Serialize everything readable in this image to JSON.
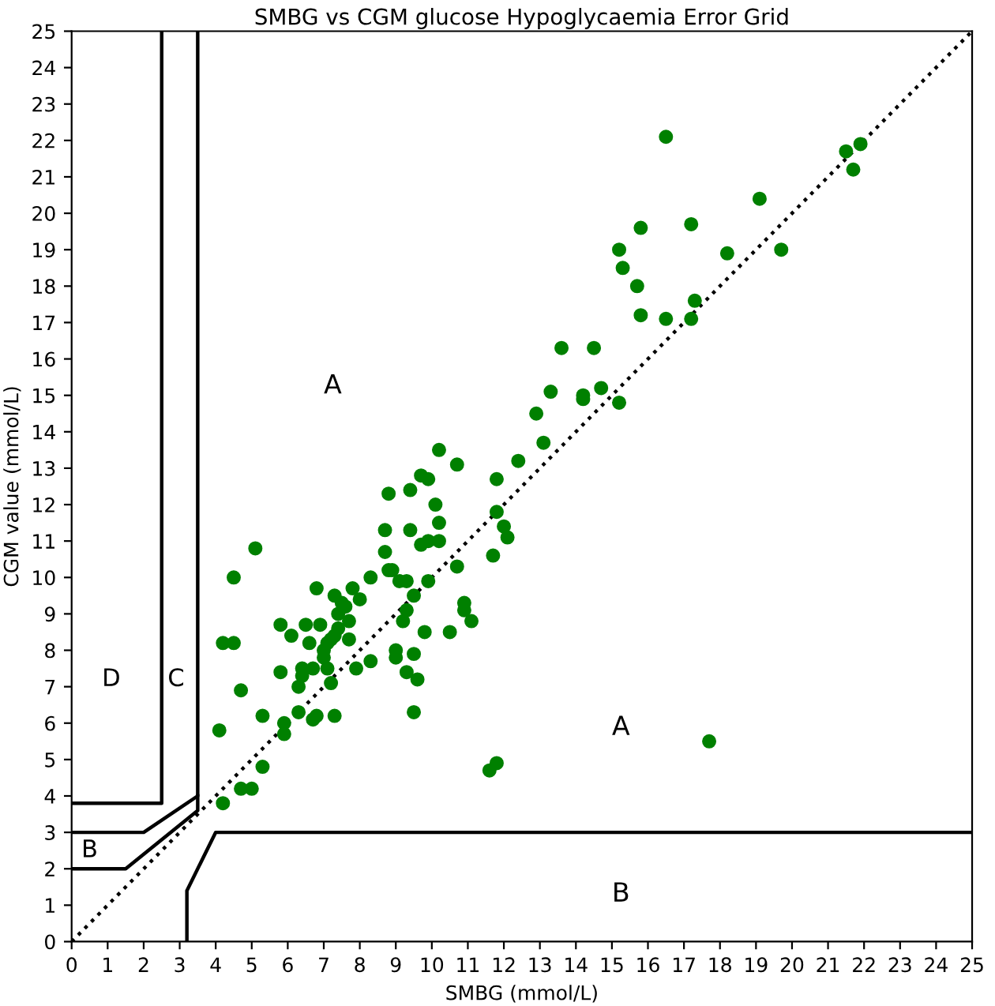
{
  "chart_data": {
    "type": "scatter",
    "title": "SMBG vs CGM glucose Hypoglycaemia Error Grid",
    "xlabel": "SMBG (mmol/L)",
    "ylabel": "CGM value (mmol/L)",
    "xlim": [
      0,
      25
    ],
    "ylim": [
      0,
      25
    ],
    "xticks": [
      0,
      1,
      2,
      3,
      4,
      5,
      6,
      7,
      8,
      9,
      10,
      11,
      12,
      13,
      14,
      15,
      16,
      17,
      18,
      19,
      20,
      21,
      22,
      23,
      24,
      25
    ],
    "yticks": [
      0,
      1,
      2,
      3,
      4,
      5,
      6,
      7,
      8,
      9,
      10,
      11,
      12,
      13,
      14,
      15,
      16,
      17,
      18,
      19,
      20,
      21,
      22,
      23,
      24,
      25
    ],
    "grid": false,
    "series": [
      {
        "color": "#008000",
        "marker": "circle",
        "x": [
          4.2,
          4.7,
          5.0,
          5.3,
          4.1,
          5.3,
          4.7,
          4.2,
          4.5,
          4.5,
          5.1,
          5.9,
          5.9,
          6.3,
          6.7,
          6.8,
          7.3,
          5.8,
          6.3,
          6.4,
          6.4,
          6.7,
          7.1,
          7.2,
          7.9,
          8.3,
          9.0,
          9.0,
          9.3,
          9.5,
          9.6,
          9.5,
          6.6,
          6.1,
          5.8,
          6.5,
          6.9,
          7.0,
          7.1,
          7.2,
          7.3,
          7.4,
          7.7,
          7.0,
          6.8,
          7.3,
          7.5,
          7.4,
          7.6,
          7.7,
          8.0,
          7.8,
          8.3,
          9.8,
          10.5,
          8.7,
          8.8,
          8.9,
          9.1,
          9.3,
          9.5,
          9.9,
          9.3,
          9.2,
          10.9,
          10.9,
          11.1,
          8.7,
          9.4,
          9.7,
          9.9,
          10.2,
          10.2,
          10.1,
          8.8,
          9.4,
          9.7,
          9.9,
          10.2,
          10.7,
          11.8,
          11.8,
          11.7,
          10.7,
          12.0,
          12.1,
          12.4,
          12.9,
          13.1,
          13.3,
          13.6,
          14.5,
          14.2,
          14.2,
          14.7,
          15.2,
          15.2,
          15.3,
          15.7,
          15.8,
          15.8,
          16.5,
          16.5,
          17.2,
          17.3,
          17.2,
          18.2,
          19.1,
          19.7,
          21.5,
          21.7,
          21.9,
          11.6,
          11.8,
          17.7
        ],
        "values": [
          3.8,
          4.2,
          4.2,
          4.8,
          5.8,
          6.2,
          6.9,
          8.2,
          8.2,
          10.0,
          10.8,
          5.7,
          6.0,
          6.3,
          6.1,
          6.2,
          6.2,
          7.4,
          7.0,
          7.3,
          7.5,
          7.5,
          7.5,
          7.1,
          7.5,
          7.7,
          8.0,
          7.8,
          7.4,
          7.9,
          7.2,
          6.3,
          8.2,
          8.4,
          8.7,
          8.7,
          8.7,
          8.0,
          8.2,
          8.3,
          8.4,
          8.6,
          8.3,
          7.8,
          9.7,
          9.5,
          9.3,
          9.0,
          9.2,
          8.8,
          9.4,
          9.7,
          10.0,
          8.5,
          8.5,
          10.7,
          10.2,
          10.2,
          9.9,
          9.9,
          9.5,
          9.9,
          9.1,
          8.8,
          9.3,
          9.1,
          8.8,
          11.3,
          11.3,
          10.9,
          11.0,
          11.0,
          11.5,
          12.0,
          12.3,
          12.4,
          12.8,
          12.7,
          13.5,
          13.1,
          12.7,
          11.8,
          10.6,
          10.3,
          11.4,
          11.1,
          13.2,
          14.5,
          13.7,
          15.1,
          16.3,
          16.3,
          15.0,
          14.9,
          15.2,
          14.8,
          19.0,
          18.5,
          18.0,
          17.2,
          19.6,
          22.1,
          17.1,
          17.1,
          17.6,
          19.7,
          18.9,
          20.4,
          19.0,
          21.7,
          21.2,
          21.9,
          4.7,
          4.9,
          5.5
        ]
      },
      {
        "type": "line",
        "color": "#000000",
        "line_style": "dotted",
        "x": [
          0,
          25
        ],
        "values": [
          0,
          25
        ]
      },
      {
        "type": "line",
        "color": "#000000",
        "line_style": "solid",
        "x": [
          0,
          2.5,
          2.5
        ],
        "values": [
          3.8,
          3.8,
          25
        ]
      },
      {
        "type": "line",
        "color": "#000000",
        "line_style": "solid",
        "x": [
          0,
          2,
          3.5,
          3.5
        ],
        "values": [
          3,
          3,
          4,
          25
        ]
      },
      {
        "type": "line",
        "color": "#000000",
        "line_style": "solid",
        "x": [
          0,
          1.5,
          3.5,
          3.5
        ],
        "values": [
          2,
          2,
          3.6,
          4
        ]
      },
      {
        "type": "line",
        "color": "#000000",
        "line_style": "solid",
        "x": [
          3.2,
          3.2,
          4,
          25
        ],
        "values": [
          0,
          1.4,
          3,
          3
        ]
      }
    ],
    "annotations": [
      "A",
      "A",
      "B",
      "B",
      "C",
      "D"
    ]
  }
}
